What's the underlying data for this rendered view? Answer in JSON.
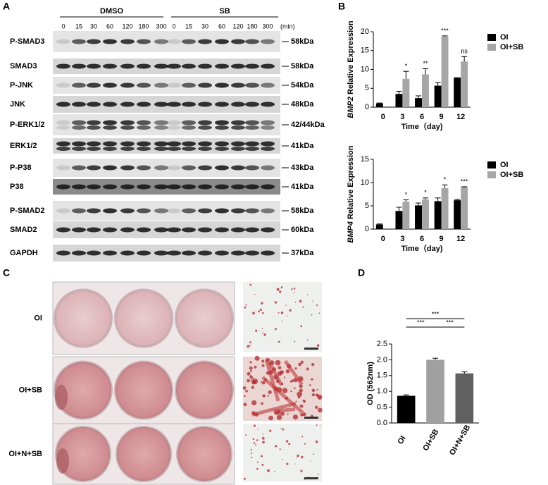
{
  "panel_a": {
    "label": "A",
    "groups": [
      "DMSO",
      "SB"
    ],
    "times": [
      "0",
      "15",
      "30",
      "60",
      "120",
      "180",
      "300"
    ],
    "unit": "(min)",
    "rows": [
      {
        "name": "P-SMAD3",
        "size": "58kDa"
      },
      {
        "name": "SMAD3",
        "size": "58kDa"
      },
      {
        "name": "P-JNK",
        "size": "54kDa"
      },
      {
        "name": "JNK",
        "size": "48kDa"
      },
      {
        "name": "P-ERK1/2",
        "size": "42/44kDa"
      },
      {
        "name": "ERK1/2",
        "size": "41kDa"
      },
      {
        "name": "P-P38",
        "size": "43kDa"
      },
      {
        "name": "P38",
        "size": "41kDa"
      },
      {
        "name": "P-SMAD2",
        "size": "58kDa"
      },
      {
        "name": "SMAD2",
        "size": "60kDa"
      },
      {
        "name": "GAPDH",
        "size": "37kDa"
      }
    ]
  },
  "panel_b": {
    "label": "B"
  },
  "panel_c": {
    "label": "C",
    "rows": [
      "OI",
      "OI+SB",
      "OI+N+SB"
    ]
  },
  "panel_d": {
    "label": "D"
  },
  "chart_data": [
    {
      "type": "bar",
      "y_label_gene": "BMP2",
      "y_label": " Relative Expression",
      "x_label": "Time（day)",
      "categories": [
        "0",
        "3",
        "6",
        "9",
        "12"
      ],
      "series": [
        {
          "name": "OI",
          "color": "#000000",
          "values": [
            1,
            3.5,
            2.4,
            5.7,
            7.8
          ],
          "errors": [
            0.1,
            0.7,
            0.6,
            0.8,
            0
          ]
        },
        {
          "name": "OI+SB",
          "color": "#a6a6a6",
          "values": [
            null,
            7.5,
            8.7,
            18.7,
            12.1
          ],
          "errors": [
            null,
            2.0,
            1.5,
            0.2,
            1.3
          ],
          "significance": [
            null,
            "*",
            "**",
            "***",
            "ns"
          ]
        }
      ],
      "ylim": [
        0,
        20
      ],
      "yticks": [
        0,
        5,
        10,
        15,
        20
      ],
      "legend": "right"
    },
    {
      "type": "bar",
      "y_label_gene": "BMP4",
      "y_label": " Relative Expression",
      "x_label": "Time（day)",
      "categories": [
        "0",
        "3",
        "6",
        "9",
        "12"
      ],
      "series": [
        {
          "name": "OI",
          "color": "#000000",
          "values": [
            1,
            3.9,
            5.1,
            6.0,
            6.2
          ],
          "errors": [
            0.1,
            0.8,
            0.5,
            0.7,
            0.2
          ]
        },
        {
          "name": "OI+SB",
          "color": "#a6a6a6",
          "values": [
            null,
            5.9,
            6.4,
            8.8,
            9.0
          ],
          "errors": [
            null,
            0.4,
            0.3,
            0.7,
            0.1
          ],
          "significance": [
            null,
            "*",
            "*",
            "*",
            "***"
          ]
        }
      ],
      "ylim": [
        0,
        15
      ],
      "yticks": [
        0,
        5,
        10,
        15
      ],
      "legend": "right"
    },
    {
      "type": "bar",
      "y_label": "OD (562nm)",
      "categories": [
        "OI",
        "OI+SB",
        "OI+N+SB"
      ],
      "values": [
        0.86,
        2.0,
        1.57
      ],
      "errors": [
        0.03,
        0.05,
        0.05
      ],
      "colors": [
        "#000000",
        "#a0a0a0",
        "#606060"
      ],
      "ylim": [
        0,
        2.5
      ],
      "yticks": [
        {
          "value": 0,
          "label": "0.0"
        },
        0.5,
        {
          "value": 1,
          "label": "1.0"
        },
        1.5,
        {
          "value": 2,
          "label": "2.0"
        },
        2.5
      ],
      "comparisons": [
        {
          "pair": [
            0,
            1
          ],
          "label": "***"
        },
        {
          "pair": [
            0,
            2
          ],
          "label": "***"
        },
        {
          "pair": [
            1,
            2
          ],
          "label": "***"
        }
      ]
    }
  ]
}
